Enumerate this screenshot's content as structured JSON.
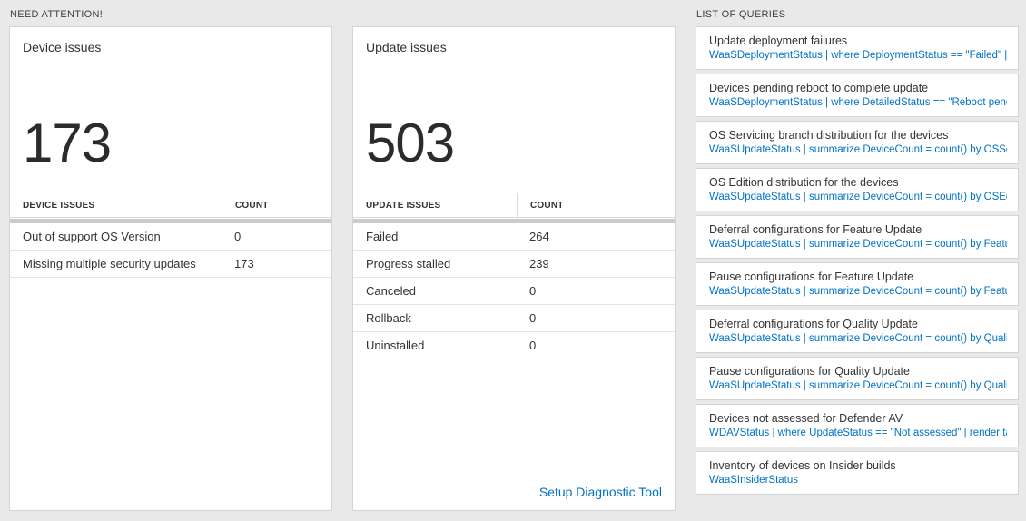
{
  "colors": {
    "accent": "#0072c6",
    "background": "#e9e9e9",
    "big_number": "#2b2b2b"
  },
  "need_attention": {
    "header": "NEED ATTENTION!",
    "cards": [
      {
        "title": "Device issues",
        "big_number": "173",
        "columns": {
          "label": "DEVICE ISSUES",
          "count": "COUNT"
        },
        "rows": [
          {
            "label": "Out of support OS Version",
            "count": "0"
          },
          {
            "label": "Missing multiple security updates",
            "count": "173"
          }
        ]
      },
      {
        "title": "Update issues",
        "big_number": "503",
        "columns": {
          "label": "UPDATE ISSUES",
          "count": "COUNT"
        },
        "rows": [
          {
            "label": "Failed",
            "count": "264"
          },
          {
            "label": "Progress stalled",
            "count": "239"
          },
          {
            "label": "Canceled",
            "count": "0"
          },
          {
            "label": "Rollback",
            "count": "0"
          },
          {
            "label": "Uninstalled",
            "count": "0"
          }
        ],
        "footer_link": "Setup Diagnostic Tool"
      }
    ]
  },
  "queries": {
    "header": "LIST OF QUERIES",
    "items": [
      {
        "title": "Update deployment failures",
        "query": "WaaSDeploymentStatus | where DeploymentStatus == \"Failed\" |..."
      },
      {
        "title": "Devices pending reboot to complete update",
        "query": "WaaSDeploymentStatus | where DetailedStatus == \"Reboot pend..."
      },
      {
        "title": "OS Servicing branch distribution for the devices",
        "query": "WaaSUpdateStatus | summarize DeviceCount = count() by OSSer..."
      },
      {
        "title": "OS Edition distribution for the devices",
        "query": "WaaSUpdateStatus | summarize DeviceCount = count() by OSEdit..."
      },
      {
        "title": "Deferral configurations for Feature Update",
        "query": "WaaSUpdateStatus | summarize DeviceCount = count() by Featur..."
      },
      {
        "title": "Pause configurations for Feature Update",
        "query": "WaaSUpdateStatus | summarize DeviceCount = count() by Featur..."
      },
      {
        "title": "Deferral configurations for Quality Update",
        "query": "WaaSUpdateStatus | summarize DeviceCount = count() by Qualit..."
      },
      {
        "title": "Pause configurations for Quality Update",
        "query": "WaaSUpdateStatus | summarize DeviceCount = count() by Qualit..."
      },
      {
        "title": "Devices not assessed for Defender AV",
        "query": "WDAVStatus | where UpdateStatus == \"Not assessed\" | render ta..."
      },
      {
        "title": "Inventory of devices on Insider builds",
        "query": "WaaSInsiderStatus"
      }
    ]
  }
}
